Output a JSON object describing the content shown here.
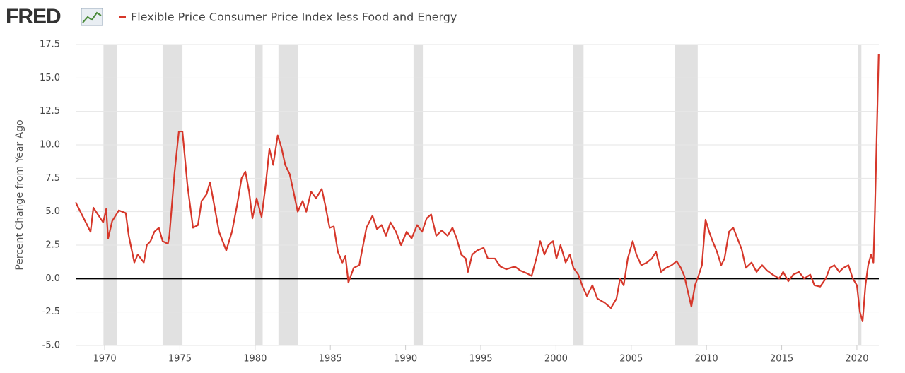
{
  "chart_data": {
    "type": "line",
    "brand": "FRED",
    "ylabel": "Percent Change from Year Ago",
    "xlim": [
      1968.07,
      2021.46
    ],
    "ylim": [
      -5,
      17.5
    ],
    "xticks": [
      1970,
      1975,
      1980,
      1985,
      1990,
      1995,
      2000,
      2005,
      2010,
      2015,
      2020
    ],
    "yticks": [
      {
        "value": -5,
        "label": "-5.0"
      },
      -2.5,
      {
        "value": 0,
        "label": "0.0"
      },
      2.5,
      {
        "value": 5,
        "label": "5.0"
      },
      7.5,
      {
        "value": 10,
        "label": "10.0"
      },
      12.5,
      {
        "value": 15,
        "label": "15.0"
      },
      17.5
    ],
    "grid": true,
    "recessions": [
      [
        1969.92,
        1970.8
      ],
      [
        1973.85,
        1975.17
      ],
      [
        1980.0,
        1980.5
      ],
      [
        1981.55,
        1982.83
      ],
      [
        1990.53,
        1991.15
      ],
      [
        2001.15,
        2001.83
      ],
      [
        2007.92,
        2009.42
      ],
      [
        2020.05,
        2020.3
      ]
    ],
    "x": [
      1968.07,
      1969.06,
      1969.25,
      1969.9,
      1970.1,
      1970.23,
      1970.5,
      1970.94,
      1971.4,
      1971.6,
      1971.97,
      1972.2,
      1972.6,
      1972.8,
      1973.05,
      1973.3,
      1973.6,
      1973.85,
      1974.2,
      1974.3,
      1974.65,
      1974.93,
      1975.17,
      1975.5,
      1975.87,
      1976.2,
      1976.44,
      1976.77,
      1977.0,
      1977.28,
      1977.6,
      1978.08,
      1978.46,
      1978.8,
      1979.1,
      1979.35,
      1979.6,
      1979.82,
      1980.1,
      1980.43,
      1980.7,
      1980.95,
      1981.2,
      1981.5,
      1981.75,
      1982.0,
      1982.3,
      1982.55,
      1982.83,
      1983.16,
      1983.4,
      1983.72,
      1984.05,
      1984.43,
      1984.66,
      1984.95,
      1985.23,
      1985.5,
      1985.8,
      1986.0,
      1986.2,
      1986.55,
      1986.92,
      1987.4,
      1987.8,
      1988.1,
      1988.4,
      1988.7,
      1989.0,
      1989.36,
      1989.7,
      1990.07,
      1990.4,
      1990.77,
      1991.1,
      1991.4,
      1991.7,
      1992.04,
      1992.41,
      1992.79,
      1993.12,
      1993.4,
      1993.7,
      1994.0,
      1994.15,
      1994.43,
      1994.76,
      1995.19,
      1995.47,
      1995.94,
      1996.3,
      1996.7,
      1997.26,
      1997.63,
      1998.05,
      1998.38,
      1998.76,
      1998.95,
      1999.23,
      1999.5,
      1999.8,
      2000.03,
      2000.3,
      2000.64,
      2000.92,
      2001.16,
      2001.48,
      2001.77,
      2002.05,
      2002.42,
      2002.75,
      2003.22,
      2003.65,
      2004.02,
      2004.26,
      2004.5,
      2004.77,
      2005.1,
      2005.34,
      2005.67,
      2006.04,
      2006.37,
      2006.65,
      2006.98,
      2007.31,
      2007.69,
      2008.02,
      2008.3,
      2008.53,
      2008.77,
      2009.0,
      2009.24,
      2009.47,
      2009.7,
      2009.94,
      2010.18,
      2010.41,
      2010.7,
      2010.98,
      2011.2,
      2011.5,
      2011.78,
      2012.06,
      2012.34,
      2012.62,
      2013.0,
      2013.33,
      2013.7,
      2014.03,
      2014.4,
      2014.83,
      2015.1,
      2015.44,
      2015.77,
      2016.15,
      2016.5,
      2016.9,
      2017.18,
      2017.56,
      2017.93,
      2018.2,
      2018.5,
      2018.83,
      2019.1,
      2019.44,
      2019.73,
      2020.0,
      2020.2,
      2020.38,
      2020.57,
      2020.75,
      2020.94,
      2021.1,
      2021.2,
      2021.45
    ],
    "series": [
      {
        "name": "Flexible Price Consumer Price Index less Food and Energy",
        "color": "#d6372a",
        "values": [
          5.7,
          3.5,
          5.3,
          4.2,
          5.2,
          3.0,
          4.3,
          5.1,
          4.9,
          3.2,
          1.2,
          1.8,
          1.2,
          2.5,
          2.8,
          3.5,
          3.8,
          2.8,
          2.6,
          3.2,
          8.0,
          11.0,
          11.0,
          7.0,
          3.8,
          4.0,
          5.8,
          6.3,
          7.2,
          5.5,
          3.5,
          2.1,
          3.5,
          5.5,
          7.5,
          8.0,
          6.5,
          4.5,
          6.0,
          4.6,
          7.0,
          9.7,
          8.5,
          10.7,
          9.8,
          8.5,
          7.8,
          6.5,
          5.0,
          5.8,
          5.0,
          6.5,
          6.0,
          6.7,
          5.5,
          3.8,
          3.9,
          2.0,
          1.2,
          1.7,
          -0.3,
          0.8,
          1.0,
          3.8,
          4.7,
          3.7,
          4.0,
          3.2,
          4.2,
          3.5,
          2.5,
          3.5,
          3.0,
          4.0,
          3.5,
          4.5,
          4.8,
          3.2,
          3.6,
          3.2,
          3.8,
          3.0,
          1.8,
          1.5,
          0.5,
          1.8,
          2.1,
          2.3,
          1.5,
          1.5,
          0.9,
          0.7,
          0.9,
          0.6,
          0.4,
          0.2,
          1.8,
          2.8,
          1.8,
          2.5,
          2.8,
          1.5,
          2.5,
          1.2,
          1.8,
          0.8,
          0.3,
          -0.6,
          -1.3,
          -0.5,
          -1.5,
          -1.8,
          -2.2,
          -1.5,
          0.0,
          -0.5,
          1.5,
          2.8,
          1.8,
          1.0,
          1.2,
          1.5,
          2.0,
          0.5,
          0.8,
          1.0,
          1.3,
          0.8,
          0.2,
          -1.0,
          -2.1,
          -0.5,
          0.2,
          1.0,
          4.4,
          3.5,
          2.8,
          2.0,
          1.0,
          1.5,
          3.5,
          3.8,
          3.0,
          2.2,
          0.8,
          1.2,
          0.5,
          1.0,
          0.6,
          0.3,
          0.0,
          0.5,
          -0.2,
          0.3,
          0.5,
          0.0,
          0.3,
          -0.5,
          -0.6,
          0.0,
          0.8,
          1.0,
          0.5,
          0.8,
          1.0,
          0.0,
          -0.5,
          -2.5,
          -3.2,
          -0.5,
          1.0,
          1.8,
          1.2,
          5.0,
          16.8
        ]
      }
    ]
  }
}
